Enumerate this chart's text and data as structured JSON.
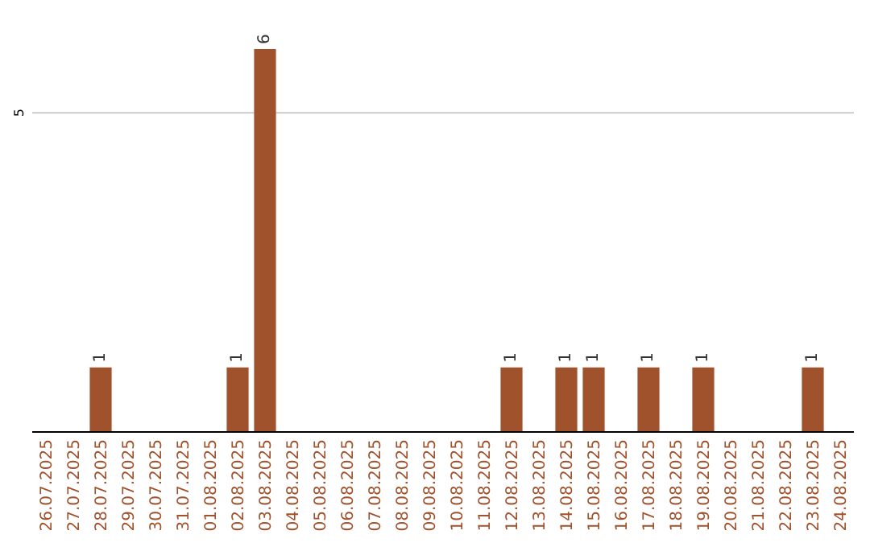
{
  "chart_data": {
    "type": "bar",
    "categories": [
      "26.07.2025",
      "27.07.2025",
      "28.07.2025",
      "29.07.2025",
      "30.07.2025",
      "31.07.2025",
      "01.08.2025",
      "02.08.2025",
      "03.08.2025",
      "04.08.2025",
      "05.08.2025",
      "06.08.2025",
      "07.08.2025",
      "08.08.2025",
      "09.08.2025",
      "10.08.2025",
      "11.08.2025",
      "12.08.2025",
      "13.08.2025",
      "14.08.2025",
      "15.08.2025",
      "16.08.2025",
      "17.08.2025",
      "18.08.2025",
      "19.08.2025",
      "20.08.2025",
      "21.08.2025",
      "22.08.2025",
      "23.08.2025",
      "24.08.2025"
    ],
    "values": [
      0,
      0,
      1,
      0,
      0,
      0,
      0,
      1,
      6,
      0,
      0,
      0,
      0,
      0,
      0,
      0,
      0,
      1,
      0,
      1,
      1,
      0,
      1,
      0,
      1,
      0,
      0,
      0,
      1,
      0
    ],
    "value_labels": [
      null,
      null,
      "1",
      null,
      null,
      null,
      null,
      "1",
      "6",
      null,
      null,
      null,
      null,
      null,
      null,
      null,
      null,
      "1",
      null,
      "1",
      "1",
      null,
      "1",
      null,
      "1",
      null,
      null,
      null,
      "1",
      null
    ],
    "color": "#a0522d",
    "ref_lines": [
      {
        "axis": "y",
        "value": 5,
        "label": "5",
        "color": "#cccccc"
      }
    ]
  }
}
